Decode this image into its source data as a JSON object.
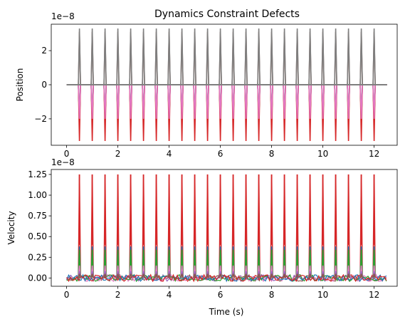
{
  "chart_data": [
    {
      "type": "line",
      "title": "Dynamics Constraint Defects",
      "xlabel": "",
      "ylabel": "Position",
      "offset_text": "1e−8",
      "xlim": [
        -0.6,
        12.9
      ],
      "ylim": [
        -3.55,
        3.55
      ],
      "xticks": [
        0,
        2,
        4,
        6,
        8,
        10,
        12
      ],
      "xtick_labels": [
        "0",
        "2",
        "4",
        "6",
        "8",
        "10",
        "12"
      ],
      "yticks": [
        -2,
        0,
        2
      ],
      "ytick_labels": [
        "−2",
        "0",
        "2"
      ],
      "grid": false,
      "spike_times": [
        0.5,
        1.0,
        1.5,
        2.0,
        2.5,
        3.0,
        3.5,
        4.0,
        4.5,
        5.0,
        5.5,
        6.0,
        6.5,
        7.0,
        7.5,
        8.0,
        8.5,
        9.0,
        9.5,
        10.0,
        10.5,
        11.0,
        11.5,
        12.0
      ],
      "baseline": {
        "x": [
          0,
          12.5
        ],
        "y": [
          0,
          0
        ]
      },
      "series": [
        {
          "color": "#1f77b4",
          "spike": -2.3
        },
        {
          "color": "#2ca02c",
          "spike": -2.2
        },
        {
          "color": "#9467bd",
          "spike": -2.1
        },
        {
          "color": "#d62728",
          "spike": -3.3
        },
        {
          "color": "#e377c2",
          "spike": -2.0
        },
        {
          "color": "#8c564b",
          "spike": 3.1
        },
        {
          "color": "#7f7f7f",
          "spike": 3.3
        }
      ]
    },
    {
      "type": "line",
      "title": "",
      "xlabel": "Time (s)",
      "ylabel": "Velocity",
      "offset_text": "1e−8",
      "xlim": [
        -0.6,
        12.9
      ],
      "ylim": [
        -0.1,
        1.31
      ],
      "xticks": [
        0,
        2,
        4,
        6,
        8,
        10,
        12
      ],
      "xtick_labels": [
        "0",
        "2",
        "4",
        "6",
        "8",
        "10",
        "12"
      ],
      "yticks": [
        0.0,
        0.25,
        0.5,
        0.75,
        1.0,
        1.25
      ],
      "ytick_labels": [
        "0.00",
        "0.25",
        "0.50",
        "0.75",
        "1.00",
        "1.25"
      ],
      "grid": false,
      "spike_times": [
        0.5,
        1.0,
        1.5,
        2.0,
        2.5,
        3.0,
        3.5,
        4.0,
        4.5,
        5.0,
        5.5,
        6.0,
        6.5,
        7.0,
        7.5,
        8.0,
        8.5,
        9.0,
        9.5,
        10.0,
        10.5,
        11.0,
        11.5,
        12.0
      ],
      "noise_amplitude": 0.04,
      "series": [
        {
          "color": "#d62728",
          "spike": 1.25
        },
        {
          "color": "#1f77b4",
          "spike": 0.38
        },
        {
          "color": "#2ca02c",
          "spike": 0.34
        },
        {
          "color": "#e377c2",
          "spike": 0.15
        },
        {
          "color": "#9467bd",
          "spike": 0.08
        },
        {
          "color": "#8c564b",
          "spike": 0.05
        }
      ]
    }
  ]
}
